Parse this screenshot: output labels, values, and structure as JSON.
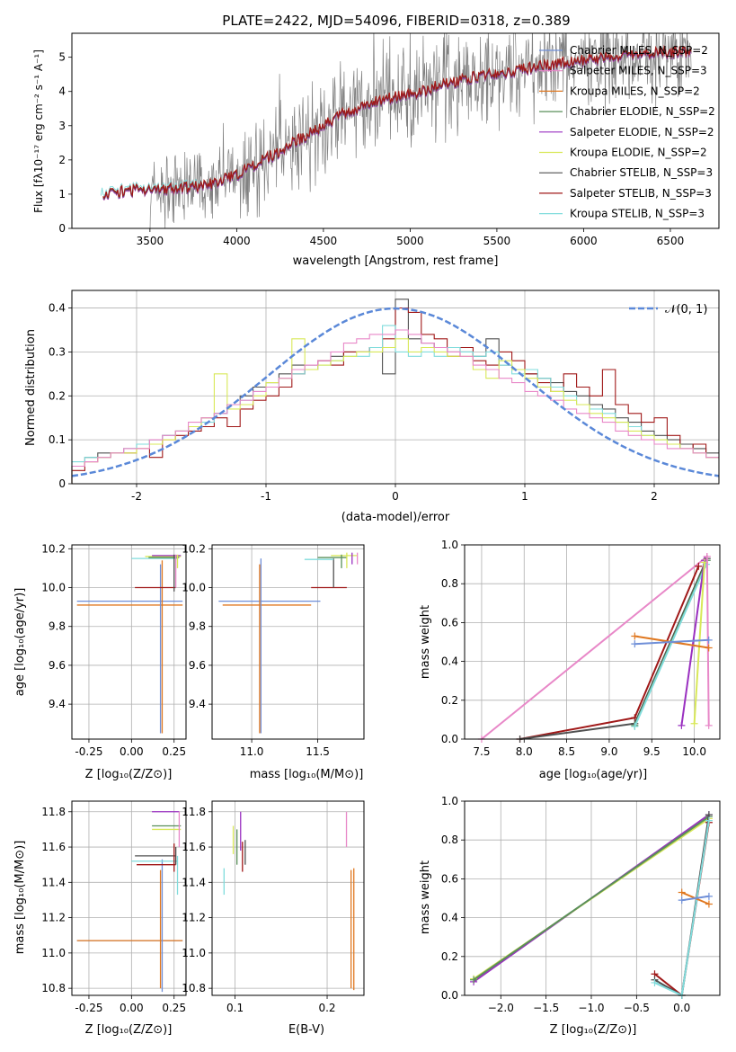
{
  "title": "PLATE=2422, MJD=54096, FIBERID=0318, z=0.389",
  "colors": {
    "Chabrier MILES": "#6f8fd8",
    "Salpeter MILES": "#e888c8",
    "Kroupa MILES": "#e07820",
    "Chabrier ELODIE": "#5a8f5a",
    "Salpeter ELODIE": "#9a30c0",
    "Kroupa ELODIE": "#d8e858",
    "Chabrier STELIB": "#505050",
    "Salpeter STELIB": "#a01818",
    "Kroupa STELIB": "#80dcdc",
    "data": "#808080",
    "gauss": "#5a88d8"
  },
  "chart_data": [
    {
      "id": "spectrum",
      "type": "line",
      "xlabel": "wavelength [Angstrom, rest frame]",
      "ylabel": "Flux [fλ10⁻¹⁷ erg cm⁻² s⁻¹ A⁻¹]",
      "xlim": [
        3050,
        6780
      ],
      "ylim": [
        0,
        5.7
      ],
      "xticks": [
        3500,
        4000,
        4500,
        5000,
        5500,
        6000,
        6500
      ],
      "yticks": [
        0,
        1,
        2,
        3,
        4,
        5
      ],
      "legend_loc": "right",
      "legend": [
        "Chabrier MILES, N_SSP=2",
        "Salpeter MILES, N_SSP=3",
        "Kroupa MILES, N_SSP=2",
        "Chabrier ELODIE, N_SSP=2",
        "Salpeter ELODIE, N_SSP=2",
        "Kroupa ELODIE, N_SSP=2",
        "Chabrier STELIB, N_SSP=3",
        "Salpeter STELIB, N_SSP=3",
        "Kroupa STELIB, N_SSP=3"
      ],
      "model_continuum": {
        "x": [
          3200,
          3400,
          3600,
          3800,
          4000,
          4200,
          4400,
          4600,
          4800,
          5000,
          5200,
          5400,
          5600,
          5800,
          6000,
          6200,
          6400,
          6600
        ],
        "y": [
          1.0,
          1.1,
          1.15,
          1.2,
          1.55,
          2.1,
          2.7,
          3.3,
          3.7,
          3.9,
          4.2,
          4.45,
          4.6,
          4.75,
          4.9,
          5.0,
          5.1,
          5.15
        ]
      },
      "data_range": [
        3500,
        6620
      ]
    },
    {
      "id": "residuals",
      "type": "step-histogram",
      "xlabel": "(data-model)/error",
      "ylabel": "Normed distribution",
      "xlim": [
        -2.5,
        2.5
      ],
      "ylim": [
        0,
        0.44
      ],
      "xticks": [
        -2,
        -1,
        0,
        1,
        2
      ],
      "yticks": [
        0.0,
        0.1,
        0.2,
        0.3,
        0.4
      ],
      "grid": true,
      "legend": [
        "𝒩(0, 1)"
      ],
      "legend_loc": "top-right",
      "bin_edges": [
        -2.5,
        -2.4,
        -2.3,
        -2.2,
        -2.1,
        -2.0,
        -1.9,
        -1.8,
        -1.7,
        -1.6,
        -1.5,
        -1.4,
        -1.3,
        -1.2,
        -1.1,
        -1.0,
        -0.9,
        -0.8,
        -0.7,
        -0.6,
        -0.5,
        -0.4,
        -0.3,
        -0.2,
        -0.1,
        0.0,
        0.1,
        0.2,
        0.3,
        0.4,
        0.5,
        0.6,
        0.7,
        0.8,
        0.9,
        1.0,
        1.1,
        1.2,
        1.3,
        1.4,
        1.5,
        1.6,
        1.7,
        1.8,
        1.9,
        2.0,
        2.1,
        2.2,
        2.3,
        2.4,
        2.5
      ],
      "series": [
        {
          "color_key": "Chabrier STELIB",
          "values": [
            0.04,
            0.06,
            0.07,
            0.07,
            0.08,
            0.09,
            0.1,
            0.11,
            0.12,
            0.13,
            0.15,
            0.16,
            0.18,
            0.2,
            0.22,
            0.23,
            0.25,
            0.27,
            0.27,
            0.28,
            0.29,
            0.3,
            0.3,
            0.31,
            0.25,
            0.42,
            0.33,
            0.32,
            0.31,
            0.3,
            0.3,
            0.29,
            0.33,
            0.27,
            0.26,
            0.25,
            0.24,
            0.23,
            0.21,
            0.2,
            0.18,
            0.17,
            0.15,
            0.14,
            0.12,
            0.11,
            0.1,
            0.09,
            0.08,
            0.07
          ]
        },
        {
          "color_key": "Salpeter STELIB",
          "values": [
            0.03,
            0.05,
            0.06,
            0.07,
            0.07,
            0.08,
            0.06,
            0.1,
            0.11,
            0.12,
            0.13,
            0.15,
            0.13,
            0.17,
            0.19,
            0.2,
            0.22,
            0.25,
            0.26,
            0.28,
            0.27,
            0.3,
            0.3,
            0.31,
            0.33,
            0.4,
            0.39,
            0.34,
            0.33,
            0.29,
            0.31,
            0.28,
            0.27,
            0.3,
            0.28,
            0.25,
            0.23,
            0.21,
            0.25,
            0.22,
            0.2,
            0.26,
            0.18,
            0.16,
            0.14,
            0.15,
            0.11,
            0.08,
            0.09,
            0.06
          ]
        },
        {
          "color_key": "Kroupa STELIB",
          "values": [
            0.05,
            0.06,
            0.06,
            0.07,
            0.08,
            0.09,
            0.1,
            0.11,
            0.12,
            0.13,
            0.14,
            0.16,
            0.18,
            0.19,
            0.21,
            0.22,
            0.24,
            0.25,
            0.26,
            0.27,
            0.28,
            0.29,
            0.29,
            0.31,
            0.36,
            0.3,
            0.29,
            0.3,
            0.29,
            0.31,
            0.3,
            0.29,
            0.3,
            0.27,
            0.25,
            0.26,
            0.24,
            0.22,
            0.2,
            0.18,
            0.17,
            0.16,
            0.14,
            0.13,
            0.11,
            0.1,
            0.09,
            0.08,
            0.07,
            0.06
          ]
        },
        {
          "color_key": "Kroupa ELODIE",
          "values": [
            0.04,
            0.05,
            0.06,
            0.07,
            0.07,
            0.08,
            0.09,
            0.1,
            0.12,
            0.13,
            0.15,
            0.25,
            0.17,
            0.18,
            0.2,
            0.23,
            0.24,
            0.33,
            0.26,
            0.27,
            0.28,
            0.29,
            0.3,
            0.3,
            0.31,
            0.33,
            0.3,
            0.31,
            0.3,
            0.29,
            0.29,
            0.26,
            0.24,
            0.28,
            0.26,
            0.24,
            0.22,
            0.21,
            0.19,
            0.18,
            0.16,
            0.15,
            0.14,
            0.12,
            0.11,
            0.1,
            0.09,
            0.08,
            0.07,
            0.06
          ]
        },
        {
          "color_key": "Salpeter MILES",
          "values": [
            0.04,
            0.05,
            0.06,
            0.07,
            0.08,
            0.08,
            0.1,
            0.11,
            0.12,
            0.14,
            0.15,
            0.16,
            0.18,
            0.19,
            0.21,
            0.22,
            0.24,
            0.26,
            0.27,
            0.28,
            0.3,
            0.32,
            0.33,
            0.34,
            0.34,
            0.35,
            0.34,
            0.32,
            0.31,
            0.3,
            0.29,
            0.27,
            0.26,
            0.24,
            0.23,
            0.21,
            0.2,
            0.19,
            0.17,
            0.16,
            0.15,
            0.14,
            0.12,
            0.11,
            0.1,
            0.09,
            0.08,
            0.08,
            0.07,
            0.06
          ]
        }
      ],
      "gaussian": {
        "mu": 0,
        "sigma": 1
      }
    },
    {
      "id": "age-vs-Z",
      "type": "errorbar",
      "xlabel": "Z [log₁₀(Z/Z⊙)]",
      "ylabel": "age  [log₁₀(age/yr)]",
      "xlim": [
        -0.35,
        0.32
      ],
      "ylim": [
        9.22,
        10.22
      ],
      "xticks": [
        "-0.25",
        "0.00",
        "0.25"
      ],
      "yticks": [
        "9.4",
        "9.6",
        "9.8",
        "10.0",
        "10.2"
      ],
      "grid": true
    },
    {
      "id": "age-vs-mass",
      "type": "errorbar",
      "xlabel": "mass [log₁₀(M/M⊙)]",
      "xlim": [
        10.7,
        11.85
      ],
      "ylim": [
        9.22,
        10.22
      ],
      "xticks": [
        "11.0",
        "11.5"
      ],
      "yticks": [
        "9.4",
        "9.6",
        "9.8",
        "10.0",
        "10.2"
      ],
      "grid": true
    },
    {
      "id": "massweight-vs-age",
      "type": "line",
      "xlabel": "age  [log₁₀(age/yr)]",
      "ylabel": "mass weight",
      "xlim": [
        7.3,
        10.3
      ],
      "ylim": [
        0,
        1
      ],
      "xticks": [
        "7.5",
        "8.0",
        "8.5",
        "9.0",
        "9.5",
        "10.0"
      ],
      "yticks": [
        "0.0",
        "0.2",
        "0.4",
        "0.6",
        "0.8",
        "1.0"
      ],
      "grid": true
    },
    {
      "id": "mass-vs-Z",
      "type": "errorbar",
      "xlabel": "Z [log₁₀(Z/Z⊙)]",
      "ylabel": "mass [log₁₀(M/M⊙)]",
      "xlim": [
        -0.35,
        0.32
      ],
      "ylim": [
        10.76,
        11.86
      ],
      "xticks": [
        "-0.25",
        "0.00",
        "0.25"
      ],
      "yticks": [
        "10.8",
        "11.0",
        "11.2",
        "11.4",
        "11.6",
        "11.8"
      ],
      "grid": true
    },
    {
      "id": "mass-vs-ebv",
      "type": "errorbar",
      "xlabel": "E(B-V)",
      "xlim": [
        0.075,
        0.24
      ],
      "ylim": [
        10.76,
        11.86
      ],
      "xticks": [
        "0.1",
        "0.2"
      ],
      "yticks": [
        "10.8",
        "11.0",
        "11.2",
        "11.4",
        "11.6",
        "11.8"
      ],
      "grid": true
    },
    {
      "id": "massweight-vs-Z",
      "type": "line",
      "xlabel": "Z [log₁₀(Z/Z⊙)]",
      "ylabel": "mass weight",
      "xlim": [
        -2.4,
        0.42
      ],
      "ylim": [
        0,
        1
      ],
      "xticks": [
        "−2.0",
        "−1.5",
        "−1.0",
        "−0.5",
        "0.0"
      ],
      "yticks": [
        "0.0",
        "0.2",
        "0.4",
        "0.6",
        "0.8",
        "1.0"
      ],
      "grid": true
    }
  ]
}
